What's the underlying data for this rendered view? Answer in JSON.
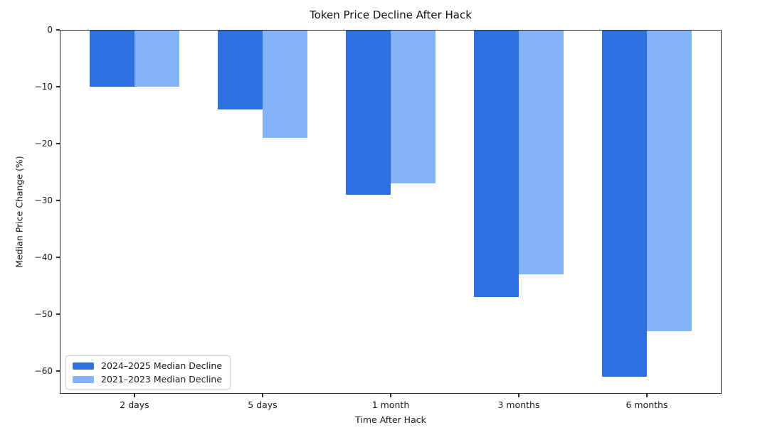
{
  "chart_data": {
    "type": "bar",
    "title": "Token Price Decline After Hack",
    "xlabel": "Time After Hack",
    "ylabel": "Median Price Change (%)",
    "categories": [
      "2 days",
      "5 days",
      "1 month",
      "3 months",
      "6 months"
    ],
    "series": [
      {
        "name": "2024–2025 Median Decline",
        "color": "#2f6fe0",
        "values": [
          -10,
          -14,
          -29,
          -47,
          -61
        ]
      },
      {
        "name": "2021–2023 Median Decline",
        "color": "#84b3f9",
        "values": [
          -10,
          -19,
          -27,
          -43,
          -53
        ]
      }
    ],
    "ylim": [
      -64,
      0
    ],
    "xlim": [
      -0.5833,
      4.5833
    ],
    "bar_width": 0.35,
    "yticks": {
      "values": [
        0,
        -10,
        -20,
        -30,
        -40,
        -50,
        -60
      ],
      "labels": [
        "0",
        "−10",
        "−20",
        "−30",
        "−40",
        "−50",
        "−60"
      ]
    },
    "grid": false,
    "legend_position": "lower left",
    "background_color": "#ffffff",
    "axis_color": "#2b3036",
    "text_color": "#1a1a1a"
  }
}
